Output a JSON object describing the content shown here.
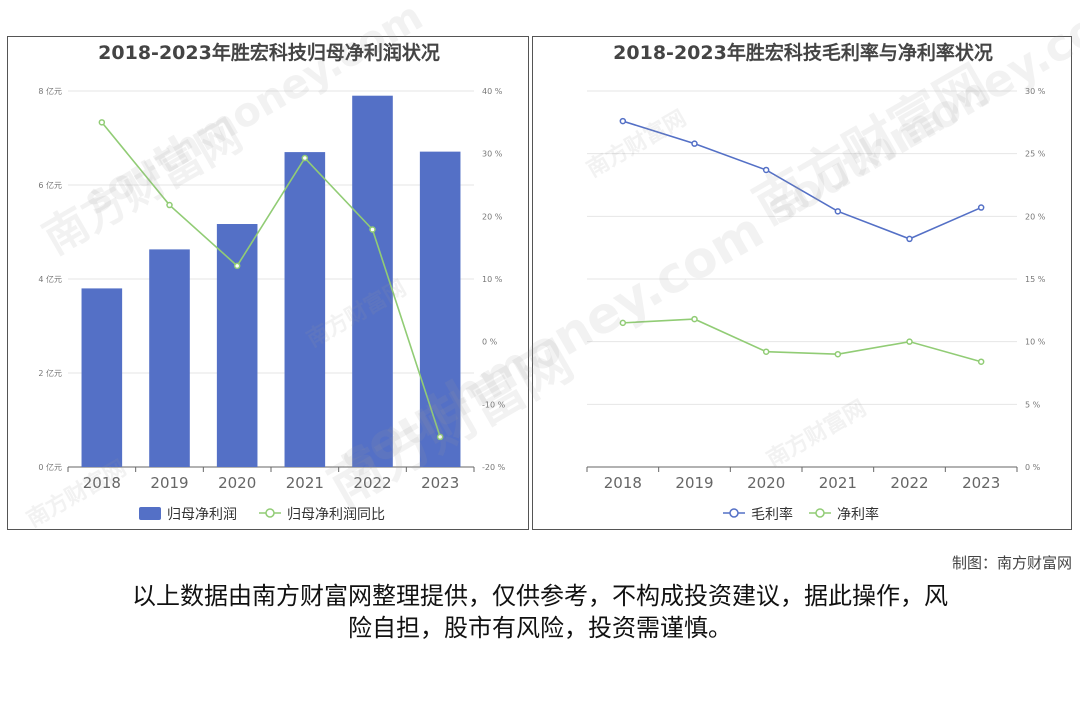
{
  "chart_data": [
    {
      "type": "bar",
      "title": "2018-2023年胜宏科技归母净利润状况",
      "categories": [
        "2018",
        "2019",
        "2020",
        "2021",
        "2022",
        "2023"
      ],
      "series": [
        {
          "name": "归母净利润",
          "type": "bar",
          "axis": "left",
          "color": "#5470c6",
          "values": [
            3.8,
            4.63,
            5.17,
            6.7,
            7.9,
            6.71
          ]
        },
        {
          "name": "归母净利润同比",
          "type": "line",
          "axis": "right",
          "color": "#91cc75",
          "values": [
            35,
            21.8,
            12.1,
            29.3,
            17.9,
            -15.2
          ]
        }
      ],
      "y_left": {
        "min": 0,
        "max": 8,
        "ticks": [
          0,
          2,
          4,
          6,
          8
        ],
        "tick_labels": [
          "0 亿元",
          "2 亿元",
          "4 亿元",
          "6 亿元",
          "8 亿元"
        ]
      },
      "y_right": {
        "min": -20,
        "max": 40,
        "ticks": [
          -20,
          -10,
          0,
          10,
          20,
          30,
          40
        ],
        "tick_labels": [
          "-20 %",
          "-10 %",
          "0 %",
          "10 %",
          "20 %",
          "30 %",
          "40 %"
        ]
      },
      "grid": true,
      "legend": "bottom"
    },
    {
      "type": "line",
      "title": "2018-2023年胜宏科技毛利率与净利率状况",
      "categories": [
        "2018",
        "2019",
        "2020",
        "2021",
        "2022",
        "2023"
      ],
      "series": [
        {
          "name": "毛利率",
          "color": "#5470c6",
          "values": [
            27.6,
            25.8,
            23.7,
            20.4,
            18.2,
            20.7
          ]
        },
        {
          "name": "净利率",
          "color": "#91cc75",
          "values": [
            11.5,
            11.8,
            9.2,
            9.0,
            10.0,
            8.4
          ]
        }
      ],
      "y_right": {
        "min": 0,
        "max": 30,
        "ticks": [
          0,
          5,
          10,
          15,
          20,
          25,
          30
        ],
        "tick_labels": [
          "0 %",
          "5 %",
          "10 %",
          "15 %",
          "20 %",
          "25 %",
          "30 %"
        ]
      },
      "grid": true,
      "legend": "bottom"
    }
  ],
  "credit": "制图：南方财富网",
  "disclaimer_line1": "以上数据由南方财富网整理提供，仅供参考，不构成投资建议，据此操作，风",
  "disclaimer_line2": "险自担，股市有风险，投资需谨慎。",
  "watermark": {
    "text": "南方财富网",
    "url_text": "southmoney.com"
  }
}
